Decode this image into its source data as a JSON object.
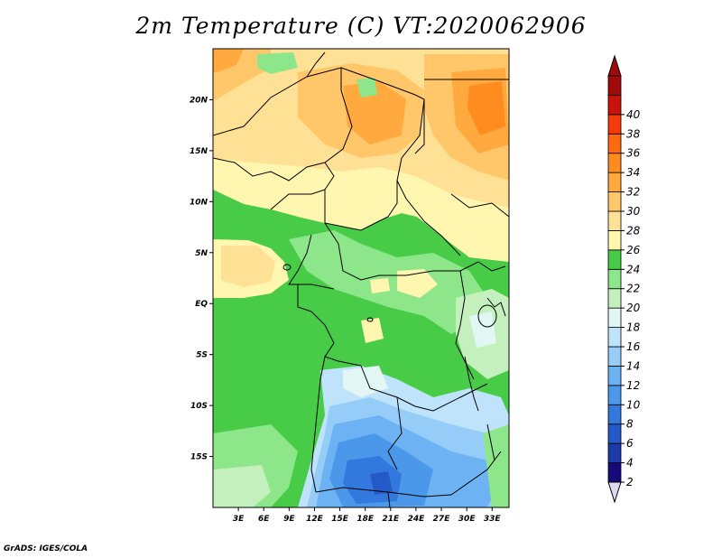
{
  "title": "2m Temperature (C) VT:2020062906",
  "footer": "GrADS: IGES/COLA",
  "map": {
    "lat_labels": [
      "20N",
      "15N",
      "10N",
      "5N",
      "EQ",
      "5S",
      "10S",
      "15S"
    ],
    "lon_labels": [
      "3E",
      "6E",
      "9E",
      "12E",
      "15E",
      "18E",
      "21E",
      "24E",
      "27E",
      "30E",
      "33E"
    ],
    "lon_range": [
      0,
      35
    ],
    "lat_range": [
      -20,
      25
    ]
  },
  "colorbar": {
    "levels": [
      2,
      4,
      6,
      8,
      10,
      12,
      14,
      16,
      18,
      20,
      22,
      24,
      26,
      28,
      30,
      32,
      34,
      36,
      38,
      40
    ],
    "colors": [
      "#160a78",
      "#1c3aa8",
      "#2459c8",
      "#3378dc",
      "#4b97ea",
      "#6db2f2",
      "#95ccf8",
      "#bfe3fa",
      "#e2f6f4",
      "#c4f0be",
      "#8ee68a",
      "#48cc48",
      "#fff6b0",
      "#ffe196",
      "#ffc66a",
      "#ffa93e",
      "#ff8c1e",
      "#ff6a10",
      "#f43c0a",
      "#c81408",
      "#a00a0a"
    ],
    "below_color": "#ddd8f2",
    "above_color": "#a00a0a"
  }
}
